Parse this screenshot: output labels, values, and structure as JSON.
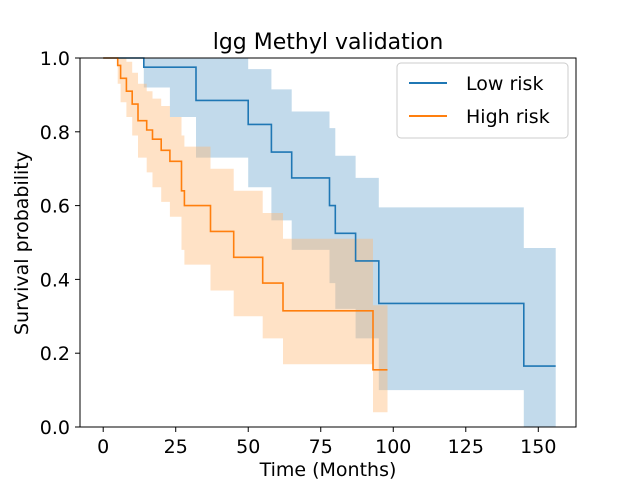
{
  "chart_data": {
    "type": "line",
    "title": "lgg Methyl validation",
    "xlabel": "Time (Months)",
    "ylabel": "Survival probability",
    "xlim": [
      -8,
      163
    ],
    "ylim": [
      0.0,
      1.0
    ],
    "xticks": [
      0,
      25,
      50,
      75,
      100,
      125,
      150
    ],
    "yticks": [
      0.0,
      0.2,
      0.4,
      0.6,
      0.8,
      1.0
    ],
    "xtick_labels": [
      "0",
      "25",
      "50",
      "75",
      "100",
      "125",
      "150"
    ],
    "ytick_labels": [
      "0.0",
      "0.2",
      "0.4",
      "0.6",
      "0.8",
      "1.0"
    ],
    "grid": false,
    "legend_position": "top-right",
    "series": [
      {
        "name": "Low risk",
        "color": "#1f77b4",
        "band_color": "#1f77b4",
        "x": [
          0,
          14,
          32,
          50,
          58,
          65,
          78,
          80,
          87,
          95,
          145,
          156
        ],
        "y": [
          1.0,
          0.975,
          0.885,
          0.82,
          0.745,
          0.675,
          0.6,
          0.525,
          0.45,
          0.335,
          0.165,
          0.165
        ],
        "ci_x": [
          0,
          14,
          23,
          32,
          50,
          58,
          65,
          78,
          80,
          87,
          95,
          145,
          156
        ],
        "ci_lower": [
          1.0,
          0.92,
          0.84,
          0.73,
          0.65,
          0.56,
          0.48,
          0.39,
          0.32,
          0.24,
          0.1,
          0.0,
          0.0
        ],
        "ci_upper": [
          1.0,
          1.0,
          1.0,
          1.0,
          0.97,
          0.915,
          0.855,
          0.81,
          0.735,
          0.675,
          0.595,
          0.485,
          0.485
        ]
      },
      {
        "name": "High risk",
        "color": "#ff7f0e",
        "band_color": "#ffbb78",
        "x": [
          0,
          5,
          6,
          8,
          10,
          12,
          15,
          17,
          20,
          23,
          27,
          28,
          37,
          45,
          55,
          62,
          93,
          98
        ],
        "y": [
          1.0,
          0.98,
          0.945,
          0.91,
          0.875,
          0.83,
          0.805,
          0.78,
          0.75,
          0.72,
          0.64,
          0.6,
          0.53,
          0.46,
          0.39,
          0.315,
          0.155,
          0.155
        ],
        "ci_x": [
          0,
          5,
          6,
          8,
          10,
          12,
          15,
          17,
          20,
          23,
          27,
          28,
          37,
          45,
          55,
          62,
          93,
          98
        ],
        "ci_lower": [
          1.0,
          0.93,
          0.88,
          0.84,
          0.79,
          0.73,
          0.69,
          0.65,
          0.61,
          0.57,
          0.48,
          0.44,
          0.37,
          0.3,
          0.24,
          0.17,
          0.04,
          0.04
        ],
        "ci_upper": [
          1.0,
          1.0,
          1.0,
          0.99,
          0.96,
          0.93,
          0.91,
          0.89,
          0.87,
          0.84,
          0.79,
          0.76,
          0.7,
          0.64,
          0.58,
          0.51,
          0.33,
          0.33
        ]
      }
    ]
  }
}
